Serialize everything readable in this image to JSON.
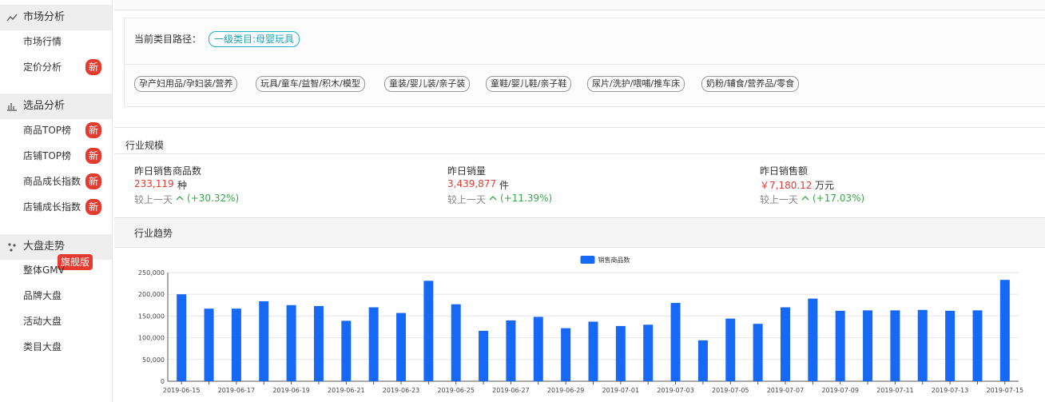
{
  "sidebar": [
    {
      "title": "市场分析",
      "items": [
        {
          "label": "市场行情"
        },
        {
          "label": "定价分析",
          "badge": "新"
        }
      ]
    },
    {
      "title": "选品分析",
      "items": [
        {
          "label": "商品TOP榜",
          "badge": "新"
        },
        {
          "label": "店铺TOP榜",
          "badge": "新"
        },
        {
          "label": "商品成长指数",
          "badge": "新"
        },
        {
          "label": "店铺成长指数",
          "badge": "新"
        }
      ]
    },
    {
      "title": "大盘走势",
      "badge": "旗舰版",
      "items": [
        {
          "label": "整体GMV"
        },
        {
          "label": "品牌大盘"
        },
        {
          "label": "活动大盘"
        },
        {
          "label": "类目大盘"
        }
      ]
    }
  ],
  "category": {
    "label": "当前类目路径：",
    "current": "一级类目:母婴玩具",
    "tags": [
      "孕产妇用品/孕妇装/营养",
      "玩具/童车/益智/积木/模型",
      "童装/婴儿装/亲子装",
      "童鞋/婴儿鞋/亲子鞋",
      "尿片/洗护/喂哺/推车床",
      "奶粉/辅食/营养品/零食"
    ]
  },
  "scale": {
    "title": "行业规模",
    "compare_label": "较上一天",
    "stats": [
      {
        "label": "昨日销售商品数",
        "value": "233,119",
        "unit": "种",
        "change": "(+30.32%)"
      },
      {
        "label": "昨日销量",
        "value": "3,439,877",
        "unit": "件",
        "change": "(+11.39%)"
      },
      {
        "label": "昨日销售额",
        "value": "￥7,180.12",
        "unit": "万元",
        "change": "(+17.03%)"
      }
    ]
  },
  "trend": {
    "title": "行业趋势",
    "chart_data": {
      "type": "bar",
      "categories": [
        "2019-06-15",
        null,
        "2019-06-17",
        null,
        "2019-06-19",
        null,
        "2019-06-21",
        null,
        "2019-06-23",
        null,
        "2019-06-25",
        null,
        "2019-06-27",
        null,
        "2019-06-29",
        null,
        "2019-07-01",
        null,
        "2019-07-03",
        null,
        "2019-07-05",
        null,
        "2019-07-07",
        null,
        "2019-07-09",
        null,
        "2019-07-11",
        null,
        "2019-07-13",
        null,
        "2019-07-15"
      ],
      "series": [
        {
          "name": "销售商品数",
          "color": "#1769f5",
          "values": [
            200000,
            167000,
            167000,
            184000,
            175000,
            173000,
            139000,
            170000,
            157000,
            231000,
            177000,
            116000,
            140000,
            148000,
            122000,
            137000,
            127000,
            130000,
            180000,
            94000,
            144000,
            132000,
            170000,
            190000,
            162000,
            163000,
            163000,
            164000,
            162000,
            163000,
            233119
          ]
        }
      ],
      "ylim": [
        0,
        250000
      ],
      "yticks": [
        0,
        {
          "value": 50000,
          "label": "50,000"
        },
        {
          "value": 100000,
          "label": "100,000"
        },
        {
          "value": 150000,
          "label": "150,000"
        },
        {
          "value": 200000,
          "label": "200,000"
        },
        {
          "value": 250000,
          "label": "250,000"
        }
      ],
      "grid": true,
      "legend": "top"
    }
  }
}
